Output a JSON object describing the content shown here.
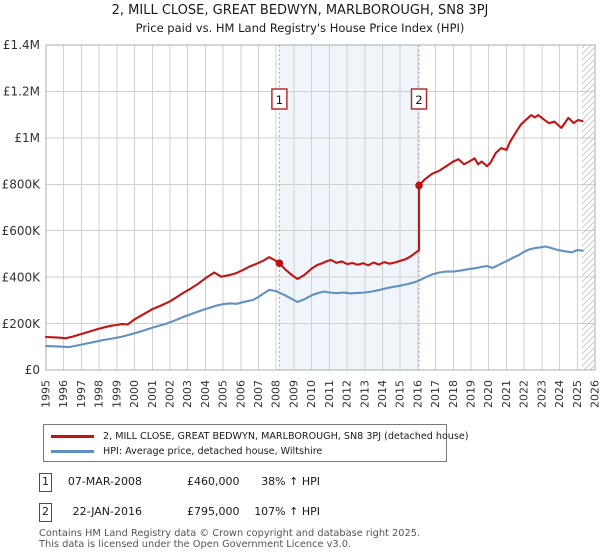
{
  "chart_data": {
    "type": "line",
    "title": "2, MILL CLOSE, GREAT BEDWYN, MARLBOROUGH, SN8 3PJ",
    "subtitle": "Price paid vs. HM Land Registry's House Price Index (HPI)",
    "x_range": [
      1995,
      2026
    ],
    "y_range": [
      0,
      1400000
    ],
    "grid": true,
    "legend_position": "bottom",
    "x_tick_labels": [
      "1995",
      "1996",
      "1997",
      "1998",
      "1999",
      "2000",
      "2001",
      "2002",
      "2003",
      "2004",
      "2005",
      "2006",
      "2007",
      "2008",
      "2009",
      "2010",
      "2011",
      "2012",
      "2013",
      "2014",
      "2015",
      "2016",
      "2017",
      "2018",
      "2019",
      "2020",
      "2021",
      "2022",
      "2023",
      "2024",
      "2025",
      "2026"
    ],
    "y_ticks": [
      {
        "value": 0,
        "label": "£0"
      },
      {
        "value": 200000,
        "label": "£200K"
      },
      {
        "value": 400000,
        "label": "£400K"
      },
      {
        "value": 600000,
        "label": "£600K"
      },
      {
        "value": 800000,
        "label": "£800K"
      },
      {
        "value": 1000000,
        "label": "£1M"
      },
      {
        "value": 1200000,
        "label": "£1.2M"
      },
      {
        "value": 1400000,
        "label": "£1.4M"
      }
    ],
    "shaded_region": {
      "from_year": 2008.18,
      "to_year": 2016.06
    },
    "future_hatch_region": {
      "from_year": 2025.25,
      "to_year": 2026
    },
    "sale_markers": [
      {
        "number": "1",
        "year": 2008.18,
        "price": 460000
      },
      {
        "number": "2",
        "year": 2016.06,
        "price": 795000
      }
    ],
    "series": [
      {
        "name": "2, MILL CLOSE, GREAT BEDWYN, MARLBOROUGH, SN8 3PJ (detached house)",
        "color": "#c31414",
        "points": [
          [
            1995.0,
            142000
          ],
          [
            1995.4,
            141000
          ],
          [
            1995.8,
            139000
          ],
          [
            1996.1,
            136500
          ],
          [
            1996.5,
            144000
          ],
          [
            1997.0,
            155000
          ],
          [
            1997.4,
            164000
          ],
          [
            1997.9,
            176000
          ],
          [
            1998.3,
            184000
          ],
          [
            1998.7,
            191000
          ],
          [
            1999.0,
            194000
          ],
          [
            1999.3,
            198000
          ],
          [
            1999.6,
            196000
          ],
          [
            2000.0,
            218000
          ],
          [
            2000.5,
            240000
          ],
          [
            2001.0,
            262000
          ],
          [
            2001.5,
            278000
          ],
          [
            2002.0,
            296000
          ],
          [
            2002.4,
            315000
          ],
          [
            2002.75,
            332000
          ],
          [
            2003.2,
            352000
          ],
          [
            2003.6,
            372000
          ],
          [
            2004.0,
            395000
          ],
          [
            2004.5,
            420000
          ],
          [
            2004.9,
            402000
          ],
          [
            2005.3,
            408000
          ],
          [
            2005.7,
            416000
          ],
          [
            2006.1,
            430000
          ],
          [
            2006.5,
            446000
          ],
          [
            2006.9,
            458000
          ],
          [
            2007.3,
            472000
          ],
          [
            2007.6,
            486000
          ],
          [
            2007.9,
            474000
          ],
          [
            2008.18,
            460000
          ],
          [
            2008.5,
            434000
          ],
          [
            2008.9,
            408000
          ],
          [
            2009.2,
            392000
          ],
          [
            2009.6,
            410000
          ],
          [
            2010.0,
            437000
          ],
          [
            2010.3,
            452000
          ],
          [
            2010.6,
            460000
          ],
          [
            2010.9,
            470000
          ],
          [
            2011.1,
            474000
          ],
          [
            2011.4,
            462000
          ],
          [
            2011.7,
            468000
          ],
          [
            2012.0,
            456000
          ],
          [
            2012.3,
            461000
          ],
          [
            2012.6,
            453000
          ],
          [
            2012.9,
            460000
          ],
          [
            2013.2,
            451000
          ],
          [
            2013.5,
            463000
          ],
          [
            2013.8,
            454000
          ],
          [
            2014.1,
            465000
          ],
          [
            2014.4,
            458000
          ],
          [
            2014.7,
            463000
          ],
          [
            2015.0,
            470000
          ],
          [
            2015.3,
            477000
          ],
          [
            2015.6,
            490000
          ],
          [
            2015.9,
            507000
          ],
          [
            2016.06,
            515000
          ],
          [
            2016.06,
            795000
          ],
          [
            2016.4,
            822000
          ],
          [
            2016.8,
            845000
          ],
          [
            2017.2,
            858000
          ],
          [
            2017.6,
            878000
          ],
          [
            2018.0,
            898000
          ],
          [
            2018.3,
            908000
          ],
          [
            2018.6,
            886000
          ],
          [
            2018.9,
            898000
          ],
          [
            2019.2,
            912000
          ],
          [
            2019.4,
            886000
          ],
          [
            2019.6,
            898000
          ],
          [
            2019.9,
            878000
          ],
          [
            2020.1,
            893000
          ],
          [
            2020.4,
            935000
          ],
          [
            2020.7,
            956000
          ],
          [
            2021.0,
            948000
          ],
          [
            2021.2,
            982000
          ],
          [
            2021.5,
            1020000
          ],
          [
            2021.8,
            1056000
          ],
          [
            2022.1,
            1078000
          ],
          [
            2022.4,
            1098000
          ],
          [
            2022.6,
            1088000
          ],
          [
            2022.8,
            1098000
          ],
          [
            2023.1,
            1080000
          ],
          [
            2023.4,
            1063000
          ],
          [
            2023.7,
            1070000
          ],
          [
            2024.1,
            1043000
          ],
          [
            2024.5,
            1086000
          ],
          [
            2024.8,
            1064000
          ],
          [
            2025.05,
            1077000
          ],
          [
            2025.3,
            1072000
          ]
        ]
      },
      {
        "name": "HPI: Average price, detached house, Wiltshire",
        "color": "#6191c1",
        "points": [
          [
            1995.0,
            103000
          ],
          [
            1995.5,
            102000
          ],
          [
            1996.0,
            100000
          ],
          [
            1996.3,
            99000
          ],
          [
            1996.8,
            106000
          ],
          [
            1997.3,
            114000
          ],
          [
            1997.8,
            122000
          ],
          [
            1998.3,
            130000
          ],
          [
            1998.8,
            136000
          ],
          [
            1999.3,
            144000
          ],
          [
            1999.8,
            154000
          ],
          [
            2000.3,
            165000
          ],
          [
            2000.8,
            177000
          ],
          [
            2001.3,
            189000
          ],
          [
            2001.8,
            200000
          ],
          [
            2002.3,
            214000
          ],
          [
            2002.8,
            230000
          ],
          [
            2003.3,
            244000
          ],
          [
            2003.8,
            257000
          ],
          [
            2004.2,
            267000
          ],
          [
            2004.6,
            277000
          ],
          [
            2005.0,
            284000
          ],
          [
            2005.4,
            287000
          ],
          [
            2005.8,
            285000
          ],
          [
            2006.2,
            294000
          ],
          [
            2006.7,
            302000
          ],
          [
            2007.0,
            315000
          ],
          [
            2007.3,
            330000
          ],
          [
            2007.6,
            345000
          ],
          [
            2008.0,
            340000
          ],
          [
            2008.18,
            333000
          ],
          [
            2008.5,
            322000
          ],
          [
            2008.9,
            305000
          ],
          [
            2009.2,
            293000
          ],
          [
            2009.6,
            305000
          ],
          [
            2010.0,
            322000
          ],
          [
            2010.4,
            332000
          ],
          [
            2010.7,
            338000
          ],
          [
            2011.0,
            334000
          ],
          [
            2011.4,
            331000
          ],
          [
            2011.8,
            334000
          ],
          [
            2012.2,
            330000
          ],
          [
            2012.6,
            332000
          ],
          [
            2013.0,
            334000
          ],
          [
            2013.4,
            338000
          ],
          [
            2013.8,
            344000
          ],
          [
            2014.2,
            352000
          ],
          [
            2014.6,
            358000
          ],
          [
            2015.0,
            363000
          ],
          [
            2015.4,
            370000
          ],
          [
            2015.8,
            378000
          ],
          [
            2016.06,
            385000
          ],
          [
            2016.4,
            398000
          ],
          [
            2016.8,
            412000
          ],
          [
            2017.2,
            420000
          ],
          [
            2017.6,
            424000
          ],
          [
            2018.0,
            424000
          ],
          [
            2018.4,
            428000
          ],
          [
            2018.8,
            434000
          ],
          [
            2019.2,
            438000
          ],
          [
            2019.6,
            444000
          ],
          [
            2019.9,
            448000
          ],
          [
            2020.2,
            440000
          ],
          [
            2020.5,
            450000
          ],
          [
            2020.8,
            462000
          ],
          [
            2021.1,
            472000
          ],
          [
            2021.4,
            485000
          ],
          [
            2021.7,
            495000
          ],
          [
            2022.0,
            510000
          ],
          [
            2022.3,
            520000
          ],
          [
            2022.6,
            525000
          ],
          [
            2022.9,
            528000
          ],
          [
            2023.2,
            532000
          ],
          [
            2023.5,
            526000
          ],
          [
            2023.8,
            519000
          ],
          [
            2024.1,
            514000
          ],
          [
            2024.4,
            510000
          ],
          [
            2024.7,
            507000
          ],
          [
            2025.0,
            517000
          ],
          [
            2025.3,
            514000
          ]
        ]
      }
    ]
  },
  "legend": {
    "items": [
      {
        "label": "2, MILL CLOSE, GREAT BEDWYN, MARLBOROUGH, SN8 3PJ (detached house)"
      },
      {
        "label": "HPI: Average price, detached house, Wiltshire"
      }
    ]
  },
  "annotations": [
    {
      "number": "1",
      "date": "07-MAR-2008",
      "price": "£460,000",
      "hpi_change": "38% ↑ HPI"
    },
    {
      "number": "2",
      "date": "22-JAN-2016",
      "price": "£795,000",
      "hpi_change": "107% ↑ HPI"
    }
  ],
  "footer": {
    "line1": "Contains HM Land Registry data © Crown copyright and database right 2025.",
    "line2": "This data is licensed under the Open Government Licence v3.0."
  },
  "colors": {
    "property_line": "#c31414",
    "hpi_line": "#6191c1",
    "sale_dot": "#b91111",
    "shaded_band": "#f0f4fb",
    "dashed_sale_line": "#f28b8b",
    "grid": "#d0d0d0",
    "plot_border": "#adadad",
    "hatch": "#c4c4c4",
    "marker_box_border": "#b22222",
    "axis_text": "#333333",
    "footer_text": "#555555"
  }
}
